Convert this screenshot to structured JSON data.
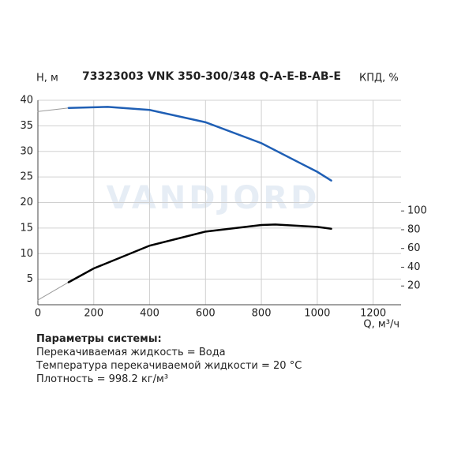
{
  "chart_data": {
    "type": "line",
    "title": "73323003 VNK 350-300/348 Q-A-E-B-AB-E",
    "y_label": "H, м",
    "y2_label": "КПД, %",
    "x_label": "Q, м³/ч",
    "watermark": "VANDJORD",
    "xlim": [
      0,
      1300
    ],
    "xticks": [
      0,
      200,
      400,
      600,
      800,
      1000,
      1200
    ],
    "ylim": [
      0,
      40
    ],
    "yticks": [
      5,
      10,
      15,
      20,
      25,
      30,
      35,
      40
    ],
    "y2lim": [
      0,
      218
    ],
    "y2ticks": [
      20,
      40,
      60,
      80,
      100
    ],
    "grid": true,
    "series": [
      {
        "color": "#9a9a9a",
        "width": 1,
        "x": [
          0,
          110
        ],
        "values": [
          37.8,
          38.5
        ]
      },
      {
        "color": "#1f5fb5",
        "width": 2.5,
        "x": [
          110,
          250,
          400,
          600,
          800,
          1000,
          1050
        ],
        "values": [
          38.5,
          38.7,
          38.1,
          35.7,
          31.6,
          26,
          24.3
        ]
      },
      {
        "color": "#9a9a9a",
        "width": 1,
        "axis": "y2",
        "x": [
          0,
          110
        ],
        "values": [
          5,
          24
        ]
      },
      {
        "color": "#000000",
        "width": 2.5,
        "axis": "y2",
        "x": [
          110,
          200,
          400,
          600,
          800,
          850,
          1000,
          1050
        ],
        "values": [
          24,
          38.7,
          63,
          78,
          85,
          85.5,
          83,
          81
        ]
      }
    ],
    "notes_title": "Параметры системы:",
    "notes": [
      "Перекачиваемая жидкость = Вода",
      "Температура перекачиваемой жидкости = 20 °C",
      "Плотность = 998.2 кг/м³"
    ]
  }
}
